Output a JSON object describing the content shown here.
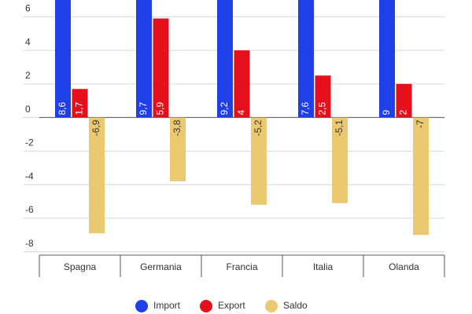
{
  "chart_data": {
    "type": "bar",
    "categories": [
      "Spagna",
      "Germania",
      "Francia",
      "Italia",
      "Olanda"
    ],
    "series": [
      {
        "name": "Import",
        "color": "#1f3fe8",
        "values": [
          8.6,
          9.7,
          9.2,
          7.6,
          9
        ],
        "value_labels": [
          "8,6",
          "9,7",
          "9,2",
          "7,6",
          "9"
        ]
      },
      {
        "name": "Export",
        "color": "#e5101c",
        "values": [
          1.7,
          5.9,
          4,
          2.5,
          2
        ],
        "value_labels": [
          "1,7",
          "5,9",
          "4",
          "2,5",
          "2"
        ]
      },
      {
        "name": "Saldo",
        "color": "#ebc971",
        "values": [
          -6.9,
          -3.8,
          -5.2,
          -5.1,
          -7
        ],
        "value_labels": [
          "-6,9",
          "-3,8",
          "-5,2",
          "-5,1",
          "-7"
        ]
      }
    ],
    "ylim": [
      -8.2,
      7
    ],
    "yticks": [
      -8,
      -6,
      -4,
      -2,
      0,
      2,
      4,
      6
    ],
    "grid": true,
    "legend": "bottom"
  }
}
